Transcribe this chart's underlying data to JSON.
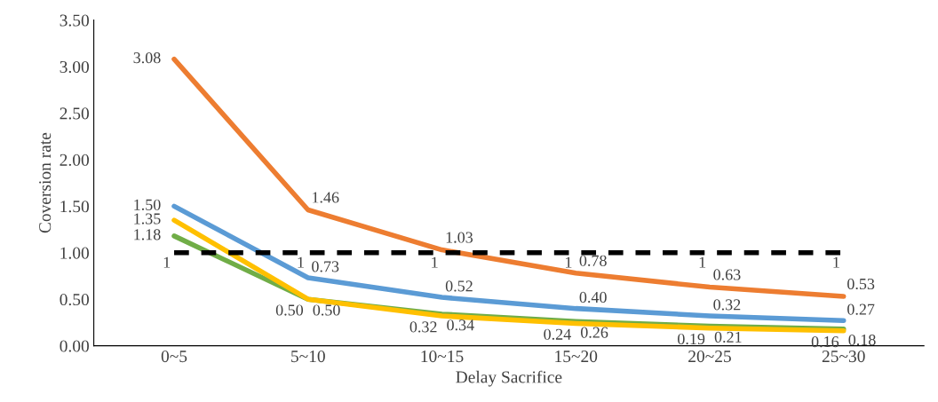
{
  "chart_data": {
    "type": "line",
    "xlabel": "Delay Sacrifice",
    "ylabel": "Coversion rate",
    "categories": [
      "0~5",
      "5~10",
      "10~15",
      "15~20",
      "20~25",
      "25~30"
    ],
    "series": [
      {
        "color": "#ed7d31",
        "values": [
          3.08,
          1.46,
          1.03,
          0.78,
          0.63,
          0.53
        ],
        "value_labels": [
          "3.08",
          "1.46",
          "1.03",
          "0.78",
          "0.63",
          "0.53"
        ]
      },
      {
        "color": "#5b9bd5",
        "values": [
          1.5,
          0.73,
          0.52,
          0.4,
          0.32,
          0.27
        ],
        "value_labels": [
          "1.50",
          "0.73",
          "0.52",
          "0.40",
          "0.32",
          "0.27"
        ]
      },
      {
        "color": "#70ad47",
        "values": [
          1.18,
          0.5,
          0.34,
          0.26,
          0.21,
          0.18
        ],
        "value_labels": [
          "1.18",
          "0.50",
          "0.34",
          "0.26",
          "0.21",
          "0.18"
        ]
      },
      {
        "color": "#ffc000",
        "values": [
          1.35,
          0.5,
          0.32,
          0.24,
          0.19,
          0.16
        ],
        "value_labels": [
          "1.35",
          "0.50",
          "0.32",
          "0.24",
          "0.19",
          "0.16"
        ]
      },
      {
        "color": "#000000",
        "line_style": "dashed",
        "values": [
          1,
          1,
          1,
          1,
          1,
          1
        ],
        "value_labels": [
          "1",
          "1",
          "1",
          "1",
          "1",
          "1"
        ]
      }
    ],
    "ylim": [
      0,
      3.5
    ],
    "yticks": [
      {
        "value": 0,
        "label": "0.00"
      },
      {
        "value": 0.5,
        "label": "0.50"
      },
      {
        "value": 1,
        "label": "1.00"
      },
      {
        "value": 1.5,
        "label": "1.50"
      },
      {
        "value": 2,
        "label": "2.00"
      },
      {
        "value": 2.5,
        "label": "2.50"
      },
      {
        "value": 3,
        "label": "3.00"
      },
      {
        "value": 3.5,
        "label": "3.50"
      }
    ],
    "grid": false,
    "line_style": "solid"
  }
}
